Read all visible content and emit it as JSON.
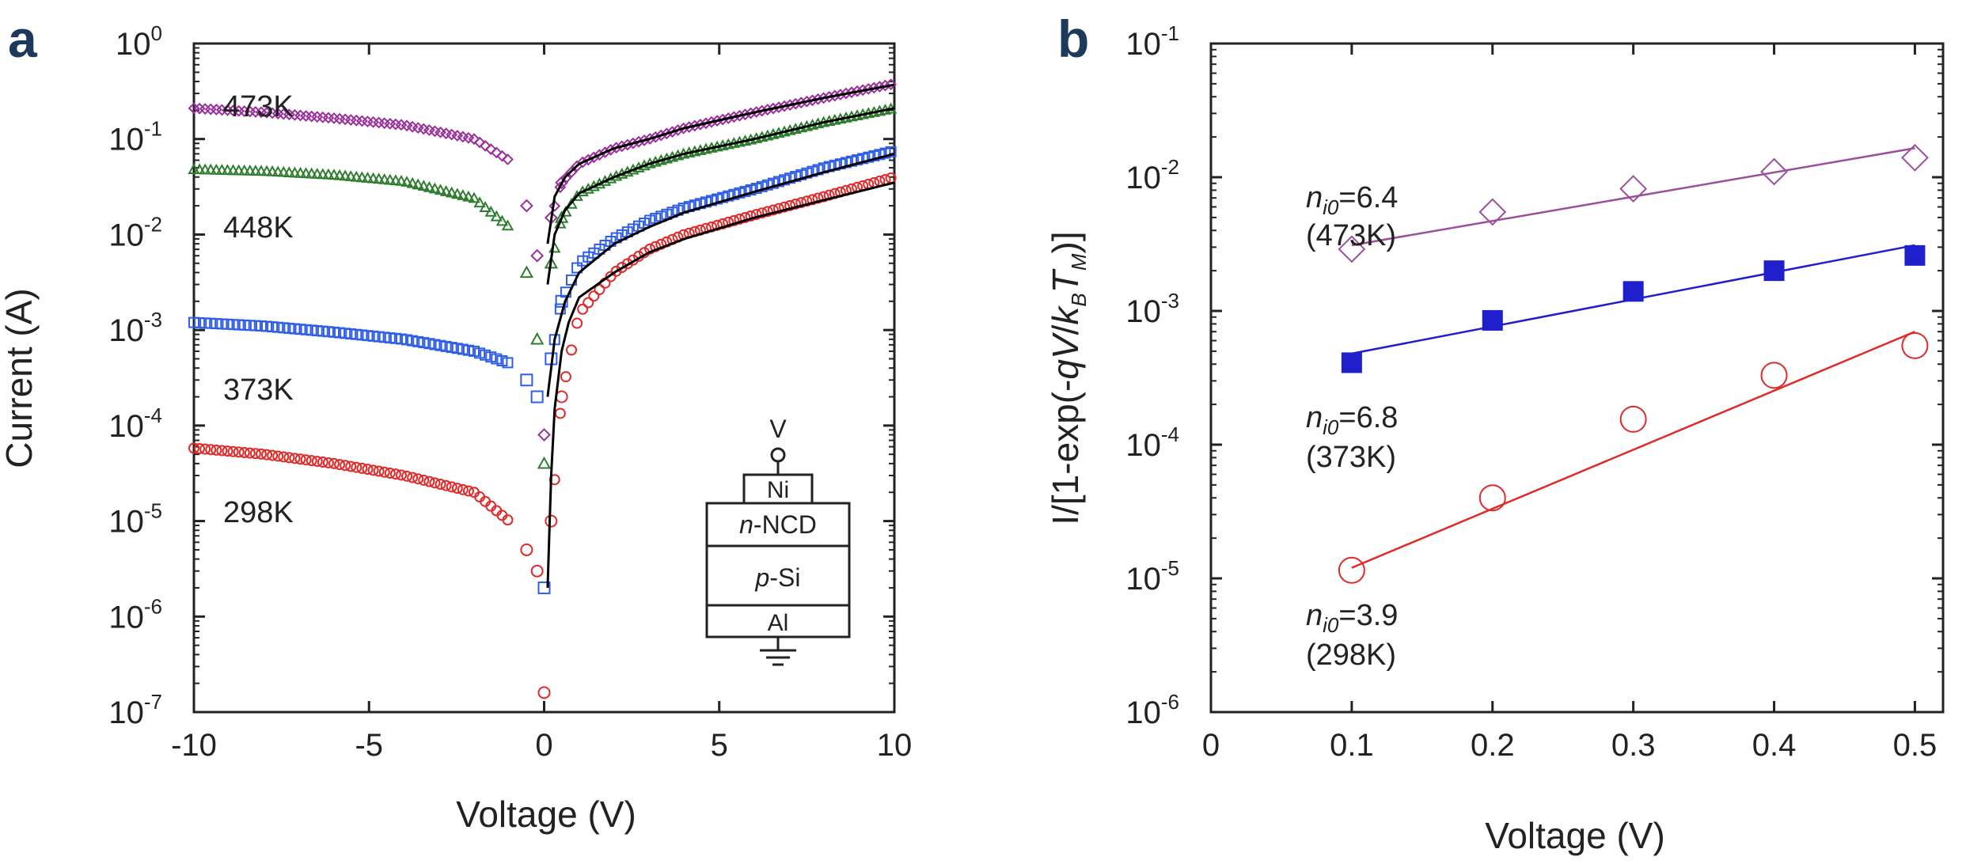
{
  "chart_data": [
    {
      "panel": "a",
      "type": "scatter",
      "xlabel": "Voltage (V)",
      "ylabel": "Current (A)",
      "xscale": "linear",
      "yscale": "log",
      "xlim": [
        -10,
        10
      ],
      "ylim": [
        1e-07,
        1
      ],
      "xticks": [
        -10,
        -5,
        0,
        5,
        10
      ],
      "xtick_labels": [
        "-10",
        "-5",
        "0",
        "5",
        "10"
      ],
      "yticks": [
        1e-07,
        1e-06,
        1e-05,
        0.0001,
        0.001,
        0.01,
        0.1,
        1
      ],
      "ytick_base": "10",
      "ytick_exponents": [
        "-7",
        "-6",
        "-5",
        "-4",
        "-3",
        "-2",
        "-1",
        "0"
      ],
      "grid": false,
      "series": [
        {
          "name": "473K",
          "label": "473K",
          "color": "#9b2f9b",
          "marker": "diamond",
          "x": [
            -10,
            -8,
            -6,
            -4,
            -2,
            -1,
            -0.5,
            -0.2,
            0,
            0.2,
            0.5,
            1,
            2,
            3,
            4,
            6,
            8,
            10
          ],
          "y": [
            0.21,
            0.19,
            0.165,
            0.14,
            0.1,
            0.06,
            0.02,
            0.006,
            8e-05,
            0.015,
            0.035,
            0.055,
            0.08,
            0.1,
            0.13,
            0.19,
            0.27,
            0.38
          ],
          "fit_x": [
            0.1,
            0.3,
            0.6,
            1,
            2,
            3,
            4,
            6,
            8,
            10
          ],
          "fit_y": [
            0.008,
            0.025,
            0.04,
            0.055,
            0.08,
            0.1,
            0.13,
            0.19,
            0.27,
            0.37
          ]
        },
        {
          "name": "448K",
          "label": "448K",
          "color": "#2e7d2e",
          "marker": "triangle",
          "x": [
            -10,
            -8,
            -6,
            -4,
            -2,
            -1,
            -0.5,
            -0.2,
            0,
            0.2,
            0.5,
            1,
            2,
            3,
            4,
            6,
            8,
            10
          ],
          "y": [
            0.048,
            0.046,
            0.042,
            0.036,
            0.024,
            0.012,
            0.004,
            0.0008,
            4e-05,
            0.005,
            0.015,
            0.027,
            0.04,
            0.055,
            0.07,
            0.1,
            0.15,
            0.21
          ],
          "fit_x": [
            0.1,
            0.3,
            0.6,
            1,
            2,
            3,
            4,
            6,
            8,
            10
          ],
          "fit_y": [
            0.003,
            0.01,
            0.018,
            0.027,
            0.04,
            0.055,
            0.07,
            0.1,
            0.15,
            0.21
          ]
        },
        {
          "name": "373K",
          "label": "373K",
          "color": "#2f5ee6",
          "marker": "square",
          "x": [
            -10,
            -8,
            -6,
            -4,
            -2,
            -1,
            -0.5,
            -0.2,
            0,
            0.2,
            0.5,
            1,
            2,
            3,
            4,
            6,
            8,
            10
          ],
          "y": [
            0.0012,
            0.0011,
            0.00095,
            0.0008,
            0.0006,
            0.00045,
            0.0003,
            0.0002,
            2e-06,
            0.0005,
            0.002,
            0.005,
            0.009,
            0.014,
            0.019,
            0.03,
            0.05,
            0.075
          ],
          "fit_x": [
            0.1,
            0.3,
            0.6,
            1,
            2,
            3,
            4,
            6,
            8,
            10
          ],
          "fit_y": [
            0.0002,
            0.0008,
            0.002,
            0.004,
            0.008,
            0.012,
            0.017,
            0.028,
            0.045,
            0.07
          ]
        },
        {
          "name": "298K",
          "label": "298K",
          "color": "#e02a2a",
          "marker": "circle",
          "x": [
            -10,
            -8,
            -6,
            -4,
            -2,
            -1,
            -0.5,
            -0.2,
            0,
            0.2,
            0.5,
            1,
            2,
            3,
            4,
            6,
            8,
            10
          ],
          "y": [
            5.8e-05,
            5e-05,
            4e-05,
            3e-05,
            2e-05,
            1e-05,
            5e-06,
            3e-06,
            1.6e-07,
            1e-05,
            0.0002,
            0.0015,
            0.004,
            0.007,
            0.01,
            0.016,
            0.025,
            0.04
          ],
          "fit_x": [
            0.1,
            0.2,
            0.3,
            0.5,
            0.7,
            1,
            2,
            3,
            4,
            6,
            8,
            10
          ],
          "fit_y": [
            2e-06,
            3e-05,
            0.00015,
            0.0006,
            0.0012,
            0.0022,
            0.004,
            0.0065,
            0.009,
            0.015,
            0.023,
            0.035
          ]
        }
      ],
      "inset": {
        "terminal_label": "V",
        "layers": [
          {
            "prefix": "",
            "italic": "",
            "suffix": "Ni"
          },
          {
            "prefix": "",
            "italic": "n",
            "suffix": "-NCD"
          },
          {
            "prefix": "",
            "italic": "p",
            "suffix": "-Si"
          },
          {
            "prefix": "",
            "italic": "",
            "suffix": "Al"
          }
        ]
      }
    },
    {
      "panel": "b",
      "type": "scatter",
      "xlabel": "Voltage (V)",
      "ylabel": "I/[1-exp(-qV/kBTM)]",
      "xscale": "linear",
      "yscale": "log",
      "xlim": [
        0,
        0.52
      ],
      "ylim": [
        1e-06,
        0.1
      ],
      "xticks": [
        0,
        0.1,
        0.2,
        0.3,
        0.4,
        0.5
      ],
      "xtick_labels": [
        "0",
        "0.1",
        "0.2",
        "0.3",
        "0.4",
        "0.5"
      ],
      "yticks": [
        1e-06,
        1e-05,
        0.0001,
        0.001,
        0.01,
        0.1
      ],
      "ytick_base": "10",
      "ytick_exponents": [
        "-6",
        "-5",
        "-4",
        "-3",
        "-2",
        "-1"
      ],
      "grid": false,
      "series": [
        {
          "name": "473K",
          "color": "#9b4f9b",
          "marker": "open-diamond",
          "annotation": {
            "n_symbol": "n",
            "n_subscript": "i0",
            "value": "=6.4",
            "temp": "(473K)"
          },
          "x": [
            0.1,
            0.2,
            0.3,
            0.4,
            0.5
          ],
          "y": [
            0.0029,
            0.0055,
            0.0082,
            0.011,
            0.014
          ],
          "fit_x": [
            0.1,
            0.5
          ],
          "fit_y": [
            0.0031,
            0.0165
          ]
        },
        {
          "name": "373K",
          "color": "#1f1fcc",
          "marker": "filled-square",
          "annotation": {
            "n_symbol": "n",
            "n_subscript": "i0",
            "value": "=6.8",
            "temp": "(373K)"
          },
          "x": [
            0.1,
            0.2,
            0.3,
            0.4,
            0.5
          ],
          "y": [
            0.00041,
            0.00085,
            0.0014,
            0.002,
            0.0026
          ],
          "fit_x": [
            0.1,
            0.5
          ],
          "fit_y": [
            0.00048,
            0.0031
          ]
        },
        {
          "name": "298K",
          "color": "#e02a2a",
          "marker": "open-circle",
          "annotation": {
            "n_symbol": "n",
            "n_subscript": "i0",
            "value": "=3.9",
            "temp": "(298K)"
          },
          "x": [
            0.1,
            0.2,
            0.3,
            0.4,
            0.5
          ],
          "y": [
            1.15e-05,
            4e-05,
            0.000155,
            0.00033,
            0.00055
          ],
          "fit_x": [
            0.1,
            0.5
          ],
          "fit_y": [
            1.2e-05,
            0.0007
          ]
        }
      ]
    }
  ]
}
